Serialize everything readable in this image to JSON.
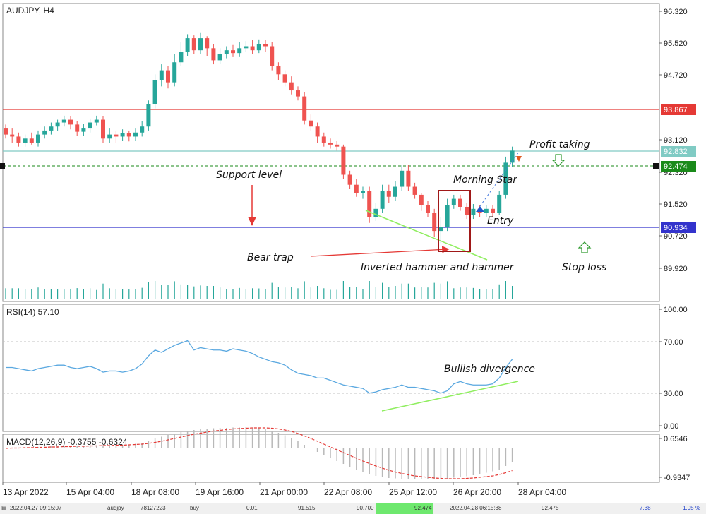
{
  "title": "AUDJPY, H4",
  "colors": {
    "bull": "#26a69a",
    "bear": "#ef5350",
    "resistance": "#e53935",
    "support": "#3333cc",
    "profit": "#80cbc4",
    "current": "#1a8a1a",
    "rsi": "#5aa8e0",
    "trend": "#90ee60"
  },
  "price_axis": {
    "ticks": [
      "96.320",
      "95.520",
      "94.720",
      "93.120",
      "92.320",
      "91.520",
      "90.720",
      "89.920"
    ],
    "tags": [
      {
        "name": "resistance",
        "label": "93.867"
      },
      {
        "name": "profit",
        "label": "92.832"
      },
      {
        "name": "current",
        "label": "92.474"
      },
      {
        "name": "support",
        "label": "90.934"
      }
    ]
  },
  "annotations": {
    "support_level": "Support level",
    "bear_trap": "Bear trap",
    "inverted_hammer": "Inverted hammer and hammer",
    "morning_star": "Morning Star",
    "entry": "Entry",
    "profit_taking": "Profit taking",
    "stop_loss": "Stop loss",
    "bullish_divergence": "Bullish divergence"
  },
  "rsi": {
    "label": "RSI(14) 57.10",
    "ticks": [
      "100.00",
      "70.00",
      "30.00",
      "0.00"
    ]
  },
  "macd": {
    "label": "MACD(12,26,9) -0.3755 -0.6324",
    "ticks": [
      "0.6546",
      "-0.9347"
    ]
  },
  "time_axis": [
    "13 Apr 2022",
    "15 Apr 04:00",
    "18 Apr 08:00",
    "19 Apr 16:00",
    "21 Apr 00:00",
    "22 Apr 08:00",
    "25 Apr 12:00",
    "26 Apr 20:00",
    "28 Apr 04:00"
  ],
  "status_bar": {
    "time": "2022.04.27 09:15:07",
    "symbol": "audjpy",
    "ticket": "78127223",
    "type": "buy",
    "volume": "0.01",
    "open_price": "91.515",
    "sl": "90.700",
    "tp": "92.474",
    "close_time": "2022.04.28 06:15:38",
    "close_price": "92.475",
    "profit": "7.38",
    "percent": "1.05 %"
  },
  "chart_data": [
    {
      "type": "candlestick",
      "title": "AUDJPY, H4",
      "ylim": [
        89.6,
        96.6
      ],
      "levels": {
        "resistance": 93.867,
        "profit_taking": 92.832,
        "current": 92.474,
        "support": 90.934
      },
      "candles": [
        [
          93.4,
          93.25,
          93.5,
          93.15
        ],
        [
          93.25,
          93.2,
          93.4,
          93.05
        ],
        [
          93.2,
          93.05,
          93.3,
          92.95
        ],
        [
          93.05,
          93.15,
          93.25,
          92.95
        ],
        [
          93.15,
          93.05,
          93.3,
          93.0
        ],
        [
          93.05,
          93.25,
          93.35,
          92.95
        ],
        [
          93.25,
          93.35,
          93.45,
          93.15
        ],
        [
          93.35,
          93.45,
          93.55,
          93.25
        ],
        [
          93.45,
          93.55,
          93.62,
          93.35
        ],
        [
          93.55,
          93.62,
          93.72,
          93.45
        ],
        [
          93.62,
          93.5,
          93.7,
          93.38
        ],
        [
          93.5,
          93.32,
          93.58,
          93.22
        ],
        [
          93.32,
          93.4,
          93.52,
          93.22
        ],
        [
          93.4,
          93.55,
          93.65,
          93.3
        ],
        [
          93.55,
          93.62,
          93.72,
          93.48
        ],
        [
          93.62,
          93.15,
          93.7,
          93.05
        ],
        [
          93.15,
          93.25,
          93.4,
          93.05
        ],
        [
          93.25,
          93.2,
          93.35,
          93.05
        ],
        [
          93.2,
          93.28,
          93.38,
          93.1
        ],
        [
          93.28,
          93.2,
          93.35,
          93.08
        ],
        [
          93.2,
          93.3,
          93.4,
          93.1
        ],
        [
          93.3,
          93.45,
          93.58,
          93.2
        ],
        [
          93.45,
          94.0,
          94.1,
          93.35
        ],
        [
          94.0,
          94.6,
          94.75,
          93.9
        ],
        [
          94.6,
          94.85,
          95.0,
          94.45
        ],
        [
          94.85,
          94.55,
          94.95,
          94.4
        ],
        [
          94.55,
          95.05,
          95.25,
          94.45
        ],
        [
          95.05,
          95.3,
          95.55,
          94.95
        ],
        [
          95.3,
          95.65,
          95.75,
          95.2
        ],
        [
          95.65,
          95.35,
          95.72,
          95.25
        ],
        [
          95.35,
          95.65,
          95.78,
          95.25
        ],
        [
          95.65,
          95.4,
          95.7,
          95.2
        ],
        [
          95.4,
          95.1,
          95.5,
          95.0
        ],
        [
          95.1,
          95.25,
          95.4,
          95.0
        ],
        [
          95.25,
          95.35,
          95.45,
          95.15
        ],
        [
          95.35,
          95.28,
          95.48,
          95.18
        ],
        [
          95.28,
          95.4,
          95.55,
          95.18
        ],
        [
          95.4,
          95.45,
          95.58,
          95.3
        ],
        [
          95.45,
          95.35,
          95.6,
          95.25
        ],
        [
          95.35,
          95.5,
          95.62,
          95.28
        ],
        [
          95.5,
          95.45,
          95.6,
          95.3
        ],
        [
          95.45,
          94.95,
          95.55,
          94.85
        ],
        [
          94.95,
          94.75,
          95.05,
          94.6
        ],
        [
          94.75,
          94.55,
          94.85,
          94.45
        ],
        [
          94.55,
          94.35,
          94.7,
          94.25
        ],
        [
          94.35,
          94.2,
          94.45,
          94.1
        ],
        [
          94.2,
          93.6,
          94.3,
          93.5
        ],
        [
          93.6,
          93.45,
          93.75,
          93.35
        ],
        [
          93.45,
          93.2,
          93.55,
          93.05
        ],
        [
          93.2,
          93.05,
          93.3,
          92.95
        ],
        [
          93.05,
          93.0,
          93.15,
          92.9
        ],
        [
          93.0,
          92.95,
          93.1,
          92.85
        ],
        [
          92.95,
          92.25,
          93.0,
          92.15
        ],
        [
          92.25,
          92.0,
          92.35,
          91.9
        ],
        [
          92.0,
          91.8,
          92.15,
          91.7
        ],
        [
          91.8,
          91.85,
          91.95,
          91.65
        ],
        [
          91.85,
          91.2,
          91.95,
          91.05
        ],
        [
          91.2,
          91.4,
          91.55,
          91.1
        ],
        [
          91.4,
          91.85,
          92.0,
          91.3
        ],
        [
          91.85,
          91.7,
          92.0,
          91.55
        ],
        [
          91.7,
          91.95,
          92.1,
          91.6
        ],
        [
          91.95,
          92.35,
          92.5,
          91.85
        ],
        [
          92.35,
          91.95,
          92.5,
          91.85
        ],
        [
          91.95,
          91.75,
          92.05,
          91.65
        ],
        [
          91.75,
          91.5,
          91.8,
          91.35
        ],
        [
          91.5,
          91.3,
          91.6,
          91.2
        ],
        [
          91.3,
          90.85,
          91.4,
          90.7
        ],
        [
          90.85,
          90.95,
          91.2,
          90.55
        ],
        [
          90.95,
          91.5,
          91.65,
          90.85
        ],
        [
          91.5,
          91.65,
          91.75,
          91.4
        ],
        [
          91.65,
          91.45,
          91.75,
          91.35
        ],
        [
          91.45,
          91.25,
          91.55,
          91.15
        ],
        [
          91.25,
          91.4,
          91.52,
          91.15
        ],
        [
          91.4,
          91.3,
          91.5,
          91.2
        ],
        [
          91.3,
          91.4,
          91.5,
          91.2
        ],
        [
          91.4,
          91.3,
          91.5,
          91.2
        ],
        [
          91.3,
          91.75,
          91.85,
          91.25
        ],
        [
          91.75,
          92.55,
          92.7,
          91.65
        ],
        [
          92.55,
          92.85,
          92.95,
          92.45
        ]
      ]
    },
    {
      "type": "line",
      "title": "RSI(14)",
      "ylim": [
        0,
        100
      ],
      "y": [
        50,
        50,
        49,
        48,
        47,
        49,
        50,
        51,
        52,
        52,
        50,
        49,
        50,
        51,
        49,
        46,
        47,
        47,
        46,
        47,
        49,
        53,
        60,
        65,
        63,
        66,
        69,
        71,
        73,
        65,
        67,
        66,
        65,
        65,
        64,
        66,
        65,
        64,
        62,
        59,
        57,
        55,
        54,
        52,
        48,
        45,
        44,
        43,
        41,
        41,
        39,
        37,
        35,
        34,
        33,
        32,
        28,
        29,
        31,
        32,
        33,
        35,
        33,
        33,
        32,
        31,
        30,
        28,
        30,
        36,
        38,
        36,
        35,
        35,
        35,
        36,
        41,
        50,
        57
      ]
    },
    {
      "type": "bar",
      "title": "MACD(12,26,9)",
      "ylim": [
        -1.0,
        0.7
      ],
      "histogram": [
        0.0,
        0.01,
        0.02,
        0.03,
        0.03,
        0.04,
        0.05,
        0.06,
        0.06,
        0.07,
        0.08,
        0.08,
        0.08,
        0.09,
        0.09,
        0.09,
        0.09,
        0.1,
        0.1,
        0.11,
        0.13,
        0.16,
        0.22,
        0.28,
        0.33,
        0.38,
        0.42,
        0.46,
        0.5,
        0.52,
        0.54,
        0.56,
        0.57,
        0.58,
        0.58,
        0.59,
        0.59,
        0.6,
        0.59,
        0.58,
        0.55,
        0.5,
        0.44,
        0.37,
        0.29,
        0.2,
        0.1,
        0.0,
        -0.1,
        -0.19,
        -0.28,
        -0.36,
        -0.44,
        -0.52,
        -0.6,
        -0.67,
        -0.73,
        -0.78,
        -0.82,
        -0.84,
        -0.85,
        -0.86,
        -0.86,
        -0.86,
        -0.86,
        -0.86,
        -0.87,
        -0.87,
        -0.86,
        -0.83,
        -0.81,
        -0.79,
        -0.76,
        -0.73,
        -0.69,
        -0.65,
        -0.6,
        -0.5,
        -0.38
      ],
      "signal": [
        0.0,
        0.01,
        0.01,
        0.02,
        0.02,
        0.03,
        0.03,
        0.04,
        0.04,
        0.05,
        0.05,
        0.06,
        0.06,
        0.07,
        0.07,
        0.08,
        0.08,
        0.09,
        0.09,
        0.1,
        0.11,
        0.12,
        0.14,
        0.17,
        0.2,
        0.24,
        0.28,
        0.32,
        0.36,
        0.4,
        0.43,
        0.46,
        0.49,
        0.51,
        0.53,
        0.55,
        0.56,
        0.57,
        0.58,
        0.58,
        0.58,
        0.57,
        0.55,
        0.52,
        0.48,
        0.42,
        0.35,
        0.28,
        0.2,
        0.12,
        0.04,
        -0.04,
        -0.12,
        -0.2,
        -0.28,
        -0.36,
        -0.43,
        -0.5,
        -0.56,
        -0.62,
        -0.67,
        -0.71,
        -0.75,
        -0.78,
        -0.8,
        -0.82,
        -0.84,
        -0.85,
        -0.86,
        -0.86,
        -0.86,
        -0.85,
        -0.84,
        -0.82,
        -0.8,
        -0.78,
        -0.74,
        -0.69,
        -0.63
      ]
    }
  ]
}
